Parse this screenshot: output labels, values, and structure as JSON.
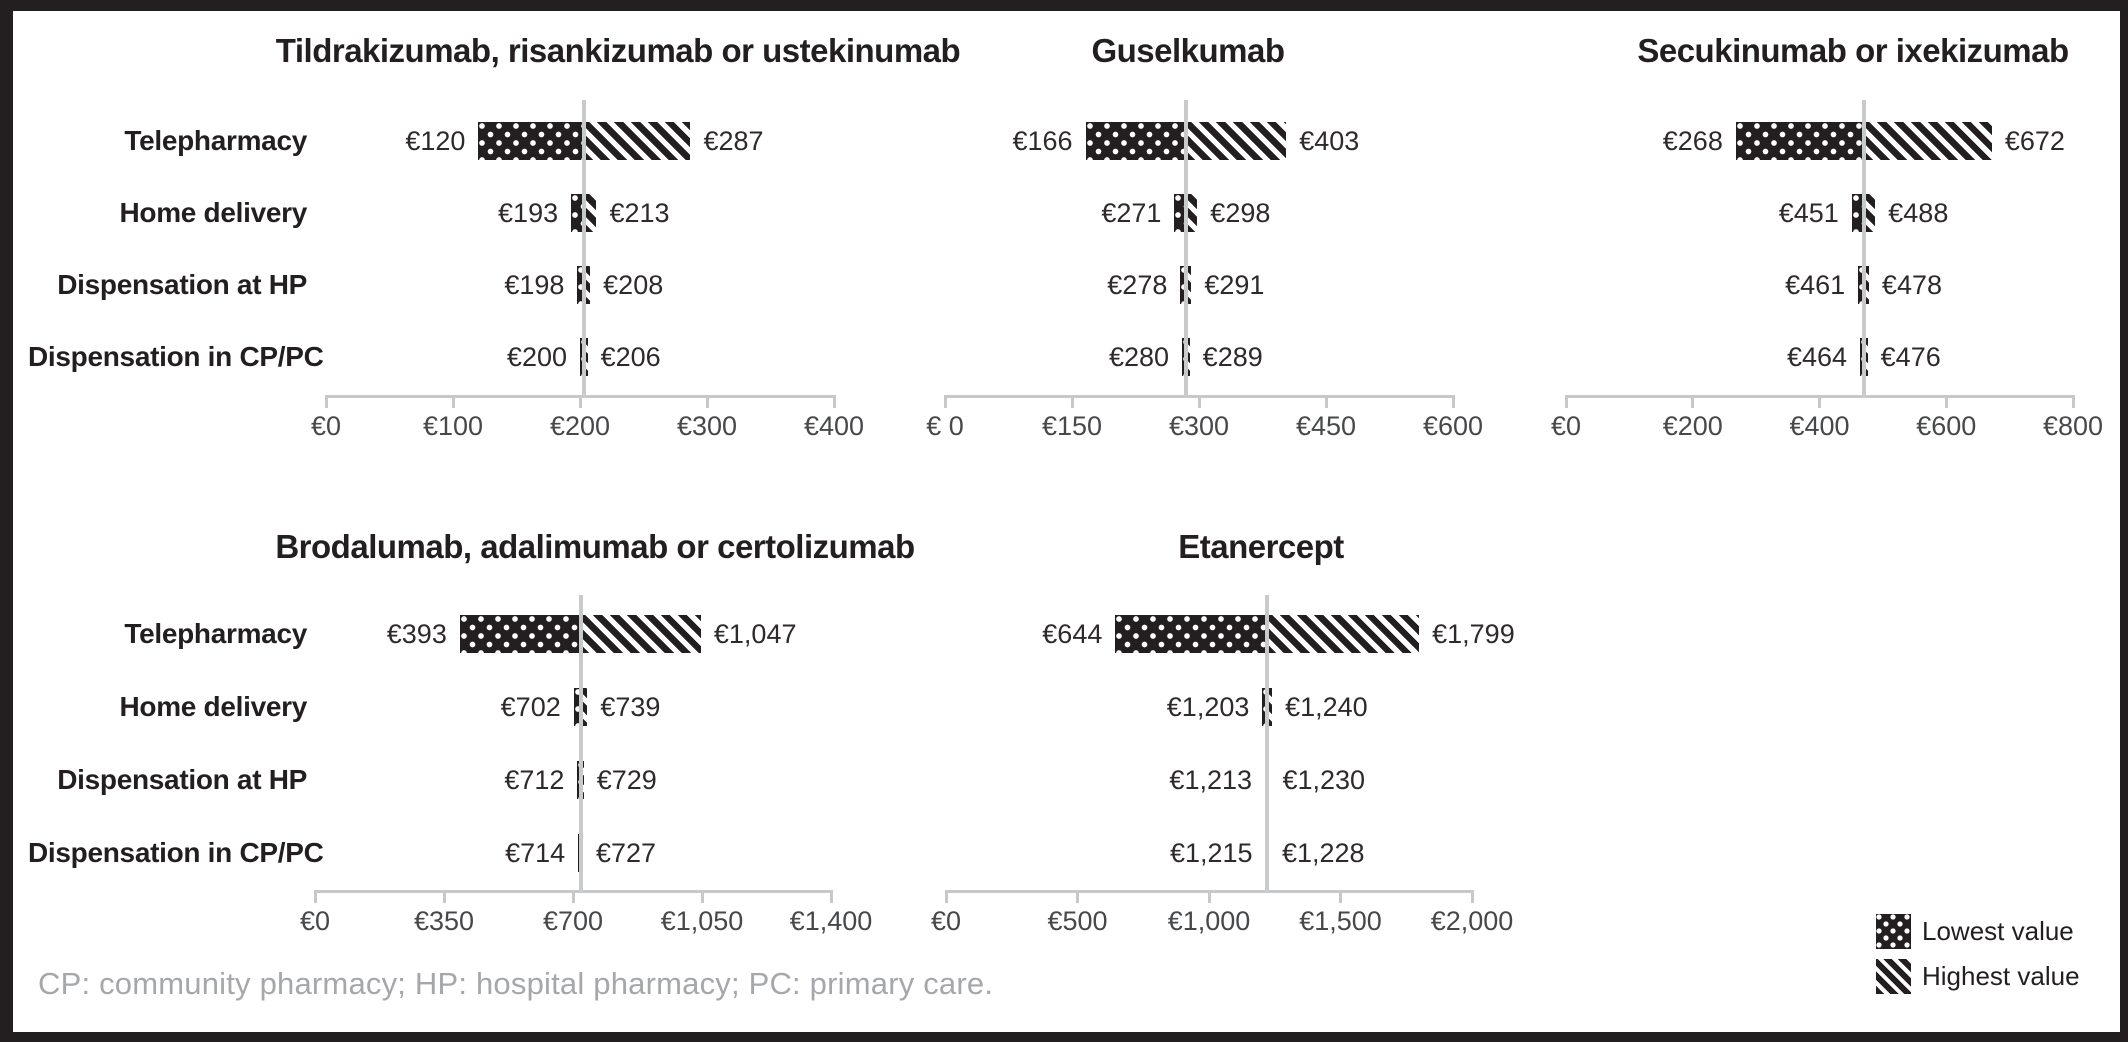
{
  "figure": {
    "footer_note": "CP: community pharmacy; HP: hospital pharmacy; PC: primary care.",
    "currency": "EUR",
    "colors": {
      "ink": "#231f20",
      "value_text": "#2e2a2b",
      "tick_text": "#47484a",
      "axis_line": "#c7c8ca",
      "reference_line": "#c9cacc",
      "footer_text": "#a5a7aa",
      "background": "#ffffff",
      "border": "#231f20"
    }
  },
  "legend": {
    "position": "bottom-right",
    "items": [
      {
        "label": "Lowest value",
        "pattern": "dots"
      },
      {
        "label": "Highest value",
        "pattern": "diagonal-stripes"
      }
    ]
  },
  "chart_data": [
    {
      "type": "bar",
      "subtype": "tornado-range",
      "title": "Tildrakizumab, risankizumab or ustekinumab",
      "categories": [
        "Telepharmacy",
        "Home delivery",
        "Dispensation at HP",
        "Dispensation in CP/PC"
      ],
      "series": [
        {
          "name": "Lowest value",
          "values": [
            120,
            193,
            198,
            200
          ]
        },
        {
          "name": "Highest value",
          "values": [
            287,
            213,
            208,
            206
          ]
        }
      ],
      "value_labels": {
        "low": [
          "€120",
          "€193",
          "€198",
          "€200"
        ],
        "high": [
          "€287",
          "€213",
          "€208",
          "€206"
        ]
      },
      "xlim": [
        0,
        400
      ],
      "x_ticks": [
        {
          "value": 0,
          "label": "€0"
        },
        {
          "value": 100,
          "label": "€100"
        },
        {
          "value": 200,
          "label": "€200"
        },
        {
          "value": 300,
          "label": "€300"
        },
        {
          "value": 400,
          "label": "€400"
        }
      ],
      "reference_value": 203.5,
      "grid": false,
      "show_category_labels": true
    },
    {
      "type": "bar",
      "subtype": "tornado-range",
      "title": "Guselkumab",
      "categories": [
        "Telepharmacy",
        "Home delivery",
        "Dispensation at HP",
        "Dispensation in CP/PC"
      ],
      "series": [
        {
          "name": "Lowest value",
          "values": [
            166,
            271,
            278,
            280
          ]
        },
        {
          "name": "Highest value",
          "values": [
            403,
            298,
            291,
            289
          ]
        }
      ],
      "value_labels": {
        "low": [
          "€166",
          "€271",
          "€278",
          "€280"
        ],
        "high": [
          "€403",
          "€298",
          "€291",
          "€289"
        ]
      },
      "xlim": [
        0,
        600
      ],
      "x_ticks": [
        {
          "value": 0,
          "label": "€ 0"
        },
        {
          "value": 150,
          "label": "€150"
        },
        {
          "value": 300,
          "label": "€300"
        },
        {
          "value": 450,
          "label": "€450"
        },
        {
          "value": 600,
          "label": "€600"
        }
      ],
      "reference_value": 284.5,
      "grid": false,
      "show_category_labels": false
    },
    {
      "type": "bar",
      "subtype": "tornado-range",
      "title": "Secukinumab or ixekizumab",
      "categories": [
        "Telepharmacy",
        "Home delivery",
        "Dispensation at HP",
        "Dispensation in CP/PC"
      ],
      "series": [
        {
          "name": "Lowest value",
          "values": [
            268,
            451,
            461,
            464
          ]
        },
        {
          "name": "Highest value",
          "values": [
            672,
            488,
            478,
            476
          ]
        }
      ],
      "value_labels": {
        "low": [
          "€268",
          "€451",
          "€461",
          "€464"
        ],
        "high": [
          "€672",
          "€488",
          "€478",
          "€476"
        ]
      },
      "xlim": [
        0,
        800
      ],
      "x_ticks": [
        {
          "value": 0,
          "label": "€0"
        },
        {
          "value": 200,
          "label": "€200"
        },
        {
          "value": 400,
          "label": "€400"
        },
        {
          "value": 600,
          "label": "€600"
        },
        {
          "value": 800,
          "label": "€800"
        }
      ],
      "reference_value": 470,
      "grid": false,
      "show_category_labels": false
    },
    {
      "type": "bar",
      "subtype": "tornado-range",
      "title": "Brodalumab, adalimumab or certolizumab",
      "categories": [
        "Telepharmacy",
        "Home delivery",
        "Dispensation at HP",
        "Dispensation in CP/PC"
      ],
      "series": [
        {
          "name": "Lowest value",
          "values": [
            393,
            702,
            712,
            714
          ]
        },
        {
          "name": "Highest value",
          "values": [
            1047,
            739,
            729,
            727
          ]
        }
      ],
      "value_labels": {
        "low": [
          "€393",
          "€702",
          "€712",
          "€714"
        ],
        "high": [
          "€1,047",
          "€739",
          "€729",
          "€727"
        ]
      },
      "xlim": [
        0,
        1400
      ],
      "x_ticks": [
        {
          "value": 0,
          "label": "€0"
        },
        {
          "value": 350,
          "label": "€350"
        },
        {
          "value": 700,
          "label": "€700"
        },
        {
          "value": 1050,
          "label": "€1,050"
        },
        {
          "value": 1400,
          "label": "€1,400"
        }
      ],
      "reference_value": 720.5,
      "grid": false,
      "show_category_labels": true
    },
    {
      "type": "bar",
      "subtype": "tornado-range",
      "title": "Etanercept",
      "categories": [
        "Telepharmacy",
        "Home delivery",
        "Dispensation at HP",
        "Dispensation in CP/PC"
      ],
      "series": [
        {
          "name": "Lowest value",
          "values": [
            644,
            1203,
            1213,
            1215
          ]
        },
        {
          "name": "Highest value",
          "values": [
            1799,
            1240,
            1230,
            1228
          ]
        }
      ],
      "value_labels": {
        "low": [
          "€644",
          "€1,203",
          "€1,213",
          "€1,215"
        ],
        "high": [
          "€1,799",
          "€1,240",
          "€1,230",
          "€1,228"
        ]
      },
      "xlim": [
        0,
        2000
      ],
      "x_ticks": [
        {
          "value": 0,
          "label": "€0"
        },
        {
          "value": 500,
          "label": "€500"
        },
        {
          "value": 1000,
          "label": "€1,000"
        },
        {
          "value": 1500,
          "label": "€1,500"
        },
        {
          "value": 2000,
          "label": "€2,000"
        }
      ],
      "reference_value": 1221.5,
      "grid": false,
      "show_category_labels": false
    }
  ]
}
